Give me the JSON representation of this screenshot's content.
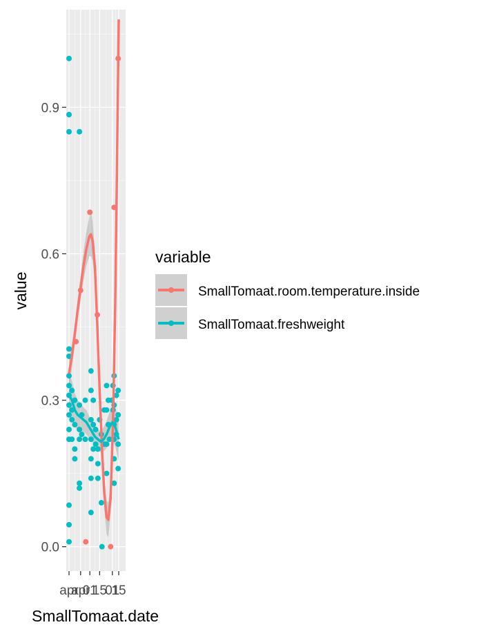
{
  "chart_data": {
    "type": "scatter",
    "xlabel": "SmallTomaat.date",
    "ylabel": "value",
    "xlim": [
      0,
      1
    ],
    "ylim": [
      -0.05,
      1.1
    ],
    "y_ticks": [
      0.0,
      0.3,
      0.6,
      0.9
    ],
    "y_tick_labels": [
      "0.0",
      "0.3",
      "0.6",
      "0.9"
    ],
    "x_ticks": [
      {
        "x": 0.0,
        "label": "apr"
      },
      {
        "x": 0.233,
        "label": "apr"
      },
      {
        "x": 0.419,
        "label": "01"
      },
      {
        "x": 0.616,
        "label": "15"
      },
      {
        "x": 0.872,
        "label": "01"
      },
      {
        "x": 1.0,
        "label": "15"
      }
    ],
    "grid": true,
    "legend": {
      "title": "variable",
      "position": "right",
      "entries": [
        "SmallTomaat.room.temperature.inside",
        "SmallTomaat.freshweight"
      ]
    },
    "series": [
      {
        "name": "SmallTomaat.room.temperature.inside",
        "color": "#F8766D",
        "points": [
          [
            0.14,
            0.42
          ],
          [
            0.233,
            0.525
          ],
          [
            0.337,
            0.01
          ],
          [
            0.419,
            0.685
          ],
          [
            0.57,
            0.475
          ],
          [
            0.837,
            0.0
          ],
          [
            0.907,
            0.695
          ],
          [
            0.988,
            1.0
          ]
        ],
        "smooth": [
          [
            0.0,
            0.355
          ],
          [
            0.058,
            0.39
          ],
          [
            0.116,
            0.435
          ],
          [
            0.174,
            0.485
          ],
          [
            0.233,
            0.53
          ],
          [
            0.291,
            0.575
          ],
          [
            0.349,
            0.61
          ],
          [
            0.407,
            0.635
          ],
          [
            0.442,
            0.64
          ],
          [
            0.477,
            0.625
          ],
          [
            0.523,
            0.57
          ],
          [
            0.57,
            0.45
          ],
          [
            0.616,
            0.32
          ],
          [
            0.663,
            0.2
          ],
          [
            0.709,
            0.11
          ],
          [
            0.756,
            0.06
          ],
          [
            0.791,
            0.055
          ],
          [
            0.837,
            0.1
          ],
          [
            0.884,
            0.25
          ],
          [
            0.93,
            0.5
          ],
          [
            0.965,
            0.78
          ],
          [
            1.0,
            1.08
          ]
        ],
        "band_width": [
          0.03,
          0.025,
          0.022,
          0.022,
          0.025,
          0.03,
          0.035,
          0.04,
          0.045,
          0.04,
          0.035,
          0.03,
          0.028,
          0.03,
          0.032,
          0.035,
          0.035,
          0.03,
          0.025,
          0.02,
          0.01,
          0.0
        ]
      },
      {
        "name": "SmallTomaat.freshweight",
        "color": "#00BFC4",
        "points": [
          [
            0.0,
            1.0
          ],
          [
            0.0,
            0.885
          ],
          [
            0.0,
            0.85
          ],
          [
            0.0,
            0.405
          ],
          [
            0.0,
            0.39
          ],
          [
            0.0,
            0.35
          ],
          [
            0.0,
            0.33
          ],
          [
            0.0,
            0.31
          ],
          [
            0.0,
            0.29
          ],
          [
            0.0,
            0.27
          ],
          [
            0.0,
            0.24
          ],
          [
            0.0,
            0.22
          ],
          [
            0.0,
            0.085
          ],
          [
            0.0,
            0.045
          ],
          [
            0.0,
            0.01
          ],
          [
            0.058,
            0.32
          ],
          [
            0.058,
            0.28
          ],
          [
            0.058,
            0.26
          ],
          [
            0.058,
            0.22
          ],
          [
            0.116,
            0.3
          ],
          [
            0.116,
            0.25
          ],
          [
            0.116,
            0.2
          ],
          [
            0.116,
            0.18
          ],
          [
            0.209,
            0.85
          ],
          [
            0.209,
            0.29
          ],
          [
            0.209,
            0.24
          ],
          [
            0.209,
            0.13
          ],
          [
            0.209,
            0.12
          ],
          [
            0.209,
            0.22
          ],
          [
            0.256,
            0.27
          ],
          [
            0.256,
            0.23
          ],
          [
            0.326,
            0.3
          ],
          [
            0.326,
            0.22
          ],
          [
            0.442,
            0.36
          ],
          [
            0.442,
            0.32
          ],
          [
            0.442,
            0.26
          ],
          [
            0.442,
            0.22
          ],
          [
            0.442,
            0.18
          ],
          [
            0.442,
            0.14
          ],
          [
            0.442,
            0.07
          ],
          [
            0.488,
            0.3
          ],
          [
            0.488,
            0.25
          ],
          [
            0.488,
            0.2
          ],
          [
            0.535,
            0.24
          ],
          [
            0.535,
            0.21
          ],
          [
            0.581,
            0.2
          ],
          [
            0.581,
            0.17
          ],
          [
            0.581,
            0.14
          ],
          [
            0.616,
            0.26
          ],
          [
            0.651,
            0.23
          ],
          [
            0.651,
            0.09
          ],
          [
            0.663,
            0.0
          ],
          [
            0.709,
            0.28
          ],
          [
            0.709,
            0.21
          ],
          [
            0.756,
            0.33
          ],
          [
            0.756,
            0.28
          ],
          [
            0.756,
            0.21
          ],
          [
            0.756,
            0.15
          ],
          [
            0.791,
            0.3
          ],
          [
            0.791,
            0.25
          ],
          [
            0.814,
            0.22
          ],
          [
            0.86,
            0.3
          ],
          [
            0.884,
            0.33
          ],
          [
            0.884,
            0.28
          ],
          [
            0.907,
            0.35
          ],
          [
            0.907,
            0.29
          ],
          [
            0.907,
            0.25
          ],
          [
            0.907,
            0.22
          ],
          [
            0.907,
            0.18
          ],
          [
            0.907,
            0.13
          ],
          [
            0.953,
            0.31
          ],
          [
            0.953,
            0.26
          ],
          [
            0.953,
            0.23
          ],
          [
            0.988,
            0.32
          ],
          [
            0.988,
            0.27
          ],
          [
            0.988,
            0.21
          ],
          [
            0.988,
            0.16
          ]
        ],
        "smooth": [
          [
            0.0,
            0.31
          ],
          [
            0.058,
            0.3
          ],
          [
            0.116,
            0.28
          ],
          [
            0.174,
            0.27
          ],
          [
            0.233,
            0.265
          ],
          [
            0.291,
            0.26
          ],
          [
            0.349,
            0.255
          ],
          [
            0.407,
            0.245
          ],
          [
            0.465,
            0.235
          ],
          [
            0.523,
            0.225
          ],
          [
            0.581,
            0.22
          ],
          [
            0.64,
            0.215
          ],
          [
            0.698,
            0.22
          ],
          [
            0.756,
            0.23
          ],
          [
            0.814,
            0.245
          ],
          [
            0.872,
            0.255
          ],
          [
            0.93,
            0.245
          ],
          [
            1.0,
            0.22
          ]
        ],
        "band_width": [
          0.045,
          0.04,
          0.035,
          0.03,
          0.028,
          0.025,
          0.025,
          0.022,
          0.02,
          0.02,
          0.02,
          0.022,
          0.025,
          0.028,
          0.03,
          0.035,
          0.04,
          0.045
        ]
      }
    ]
  }
}
